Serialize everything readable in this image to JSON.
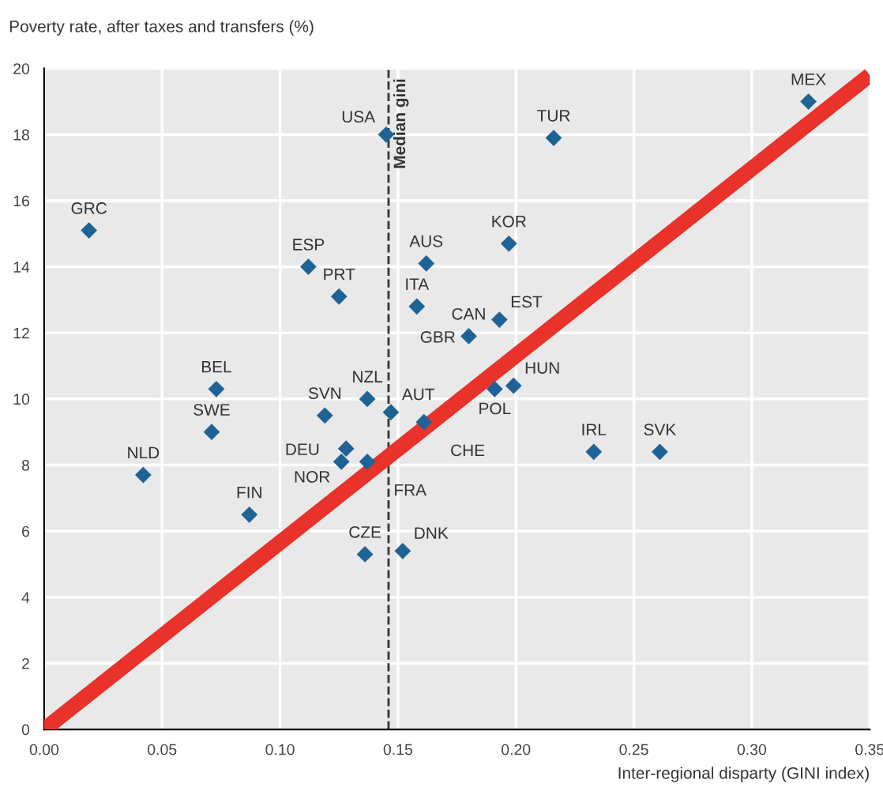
{
  "chart_data": {
    "type": "scatter",
    "ylabel": "Poverty rate, after taxes and transfers (%)",
    "xlabel": "Inter-regional disparty (GINI index)",
    "xlim": [
      0,
      0.35
    ],
    "xticks": [
      {
        "value": 0,
        "label": "0.00"
      },
      {
        "value": 0.05,
        "label": "0.05"
      },
      {
        "value": 0.1,
        "label": "0.10"
      },
      {
        "value": 0.15,
        "label": "0.15"
      },
      {
        "value": 0.2,
        "label": "0.20"
      },
      {
        "value": 0.25,
        "label": "0.25"
      },
      {
        "value": 0.3,
        "label": "0.30"
      },
      {
        "value": 0.35,
        "label": "0.35"
      }
    ],
    "ylim": [
      0,
      20
    ],
    "yticks": [
      0,
      2,
      4,
      6,
      8,
      10,
      12,
      14,
      16,
      18,
      20
    ],
    "grid": true,
    "series": [
      {
        "marker": "diamond",
        "color": "#1f6396",
        "x": [
          0.019,
          0.145,
          0.112,
          0.125,
          0.162,
          0.158,
          0.073,
          0.071,
          0.042,
          0.087,
          0.119,
          0.137,
          0.147,
          0.128,
          0.126,
          0.137,
          0.136,
          0.152,
          0.161,
          0.18,
          0.193,
          0.197,
          0.216,
          0.324,
          0.191,
          0.199,
          0.233,
          0.261
        ],
        "values": [
          15.1,
          18.0,
          14.0,
          13.1,
          14.1,
          12.8,
          10.3,
          9.0,
          7.7,
          6.5,
          9.5,
          10.0,
          9.6,
          8.5,
          8.1,
          8.1,
          5.3,
          5.4,
          9.3,
          11.9,
          12.4,
          14.7,
          17.9,
          19.0,
          10.3,
          10.4,
          8.4,
          8.4
        ]
      },
      {
        "type": "line",
        "marker": "none",
        "color": "#e8322a",
        "x": [
          0,
          0.35
        ],
        "values": [
          0,
          19.8
        ]
      }
    ],
    "ref_lines": [
      {
        "axis": "x",
        "value": 0.146,
        "label": "Median gini",
        "color": "#333333",
        "line_style": "dashed"
      }
    ],
    "annotations": [
      {
        "text": "GRC",
        "x": 0.019,
        "y": 15.1
      },
      {
        "text": "USA",
        "x": 0.145,
        "y": 18.0
      },
      {
        "text": "ESP",
        "x": 0.112,
        "y": 14.0
      },
      {
        "text": "PRT",
        "x": 0.125,
        "y": 13.1
      },
      {
        "text": "AUS",
        "x": 0.162,
        "y": 14.1
      },
      {
        "text": "ITA",
        "x": 0.158,
        "y": 12.8
      },
      {
        "text": "BEL",
        "x": 0.073,
        "y": 10.3
      },
      {
        "text": "SWE",
        "x": 0.071,
        "y": 9.0
      },
      {
        "text": "NLD",
        "x": 0.042,
        "y": 7.7
      },
      {
        "text": "FIN",
        "x": 0.087,
        "y": 6.5
      },
      {
        "text": "SVN",
        "x": 0.119,
        "y": 9.5
      },
      {
        "text": "NZL",
        "x": 0.137,
        "y": 10.0
      },
      {
        "text": "AUT",
        "x": 0.147,
        "y": 9.6
      },
      {
        "text": "DEU",
        "x": 0.128,
        "y": 8.5
      },
      {
        "text": "NOR",
        "x": 0.126,
        "y": 8.1
      },
      {
        "text": "FRA",
        "x": 0.137,
        "y": 8.1
      },
      {
        "text": "CZE",
        "x": 0.136,
        "y": 5.3
      },
      {
        "text": "DNK",
        "x": 0.152,
        "y": 5.4
      },
      {
        "text": "CHE",
        "x": 0.161,
        "y": 9.3
      },
      {
        "text": "CAN",
        "x": 0.18,
        "y": 11.9
      },
      {
        "text": "GBR",
        "x": 0.18,
        "y": 11.9
      },
      {
        "text": "EST",
        "x": 0.193,
        "y": 12.4
      },
      {
        "text": "KOR",
        "x": 0.197,
        "y": 14.7
      },
      {
        "text": "TUR",
        "x": 0.216,
        "y": 17.9
      },
      {
        "text": "MEX",
        "x": 0.324,
        "y": 19.0
      },
      {
        "text": "POL",
        "x": 0.191,
        "y": 10.3
      },
      {
        "text": "HUN",
        "x": 0.199,
        "y": 10.4
      },
      {
        "text": "IRL",
        "x": 0.233,
        "y": 8.4
      },
      {
        "text": "SVK",
        "x": 0.261,
        "y": 8.4
      }
    ]
  }
}
